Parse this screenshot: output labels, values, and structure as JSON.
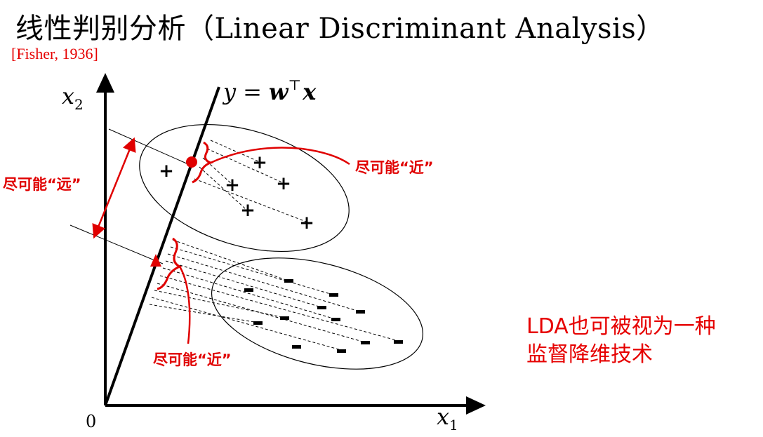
{
  "slide": {
    "title": "线性判别分析（Linear Discriminant Analysis）",
    "citation": "[Fisher, 1936]",
    "note_line1": "LDA也可被视为一种",
    "note_line2": "监督降维技术"
  },
  "diagram": {
    "axis_x_label": "x",
    "axis_x_sub": "1",
    "axis_y_label": "x",
    "axis_y_sub": "2",
    "origin_label": "0",
    "projection_line_label_y": "y",
    "projection_line_label_eq": "=",
    "projection_line_label_w": "w",
    "projection_line_label_t": "⊤",
    "projection_line_label_x": "x",
    "annotation_far": "尽可能“远”",
    "annotation_near_top": "尽可能“近”",
    "annotation_near_bottom": "尽可能“近”",
    "positive_marker": "+",
    "negative_marker": "-",
    "accent_color": "#e00000"
  }
}
